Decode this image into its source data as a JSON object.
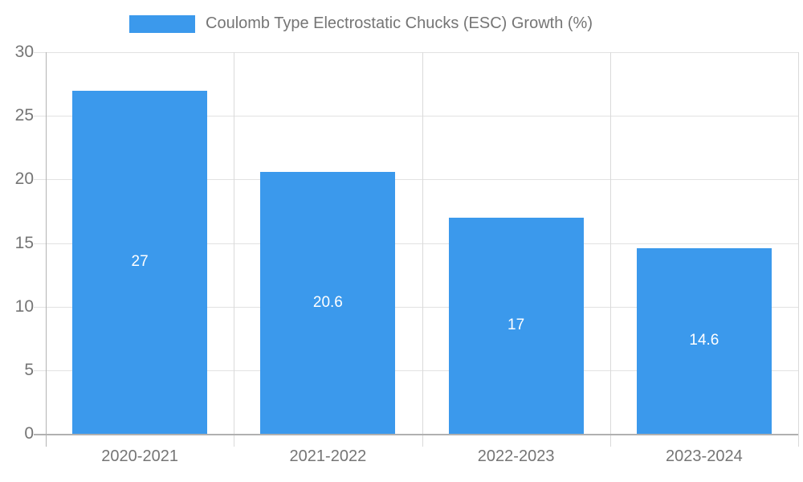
{
  "chart_data": {
    "type": "bar",
    "legend_label": "Coulomb Type Electrostatic Chucks (ESC) Growth (%)",
    "categories": [
      "2020-2021",
      "2021-2022",
      "2022-2023",
      "2023-2024"
    ],
    "values": [
      27,
      20.6,
      17,
      14.6
    ],
    "value_labels": [
      "27",
      "20.6",
      "17",
      "14.6"
    ],
    "ylim": [
      0,
      30
    ],
    "yticks": [
      0,
      5,
      10,
      15,
      20,
      25,
      30
    ],
    "xlabel": "",
    "ylabel": "",
    "title": "",
    "grid": true,
    "legend_position": "top",
    "bar_color": "#3b99ec",
    "bar_value_text_color": "#ffffff",
    "axis_text_color": "#757575"
  }
}
